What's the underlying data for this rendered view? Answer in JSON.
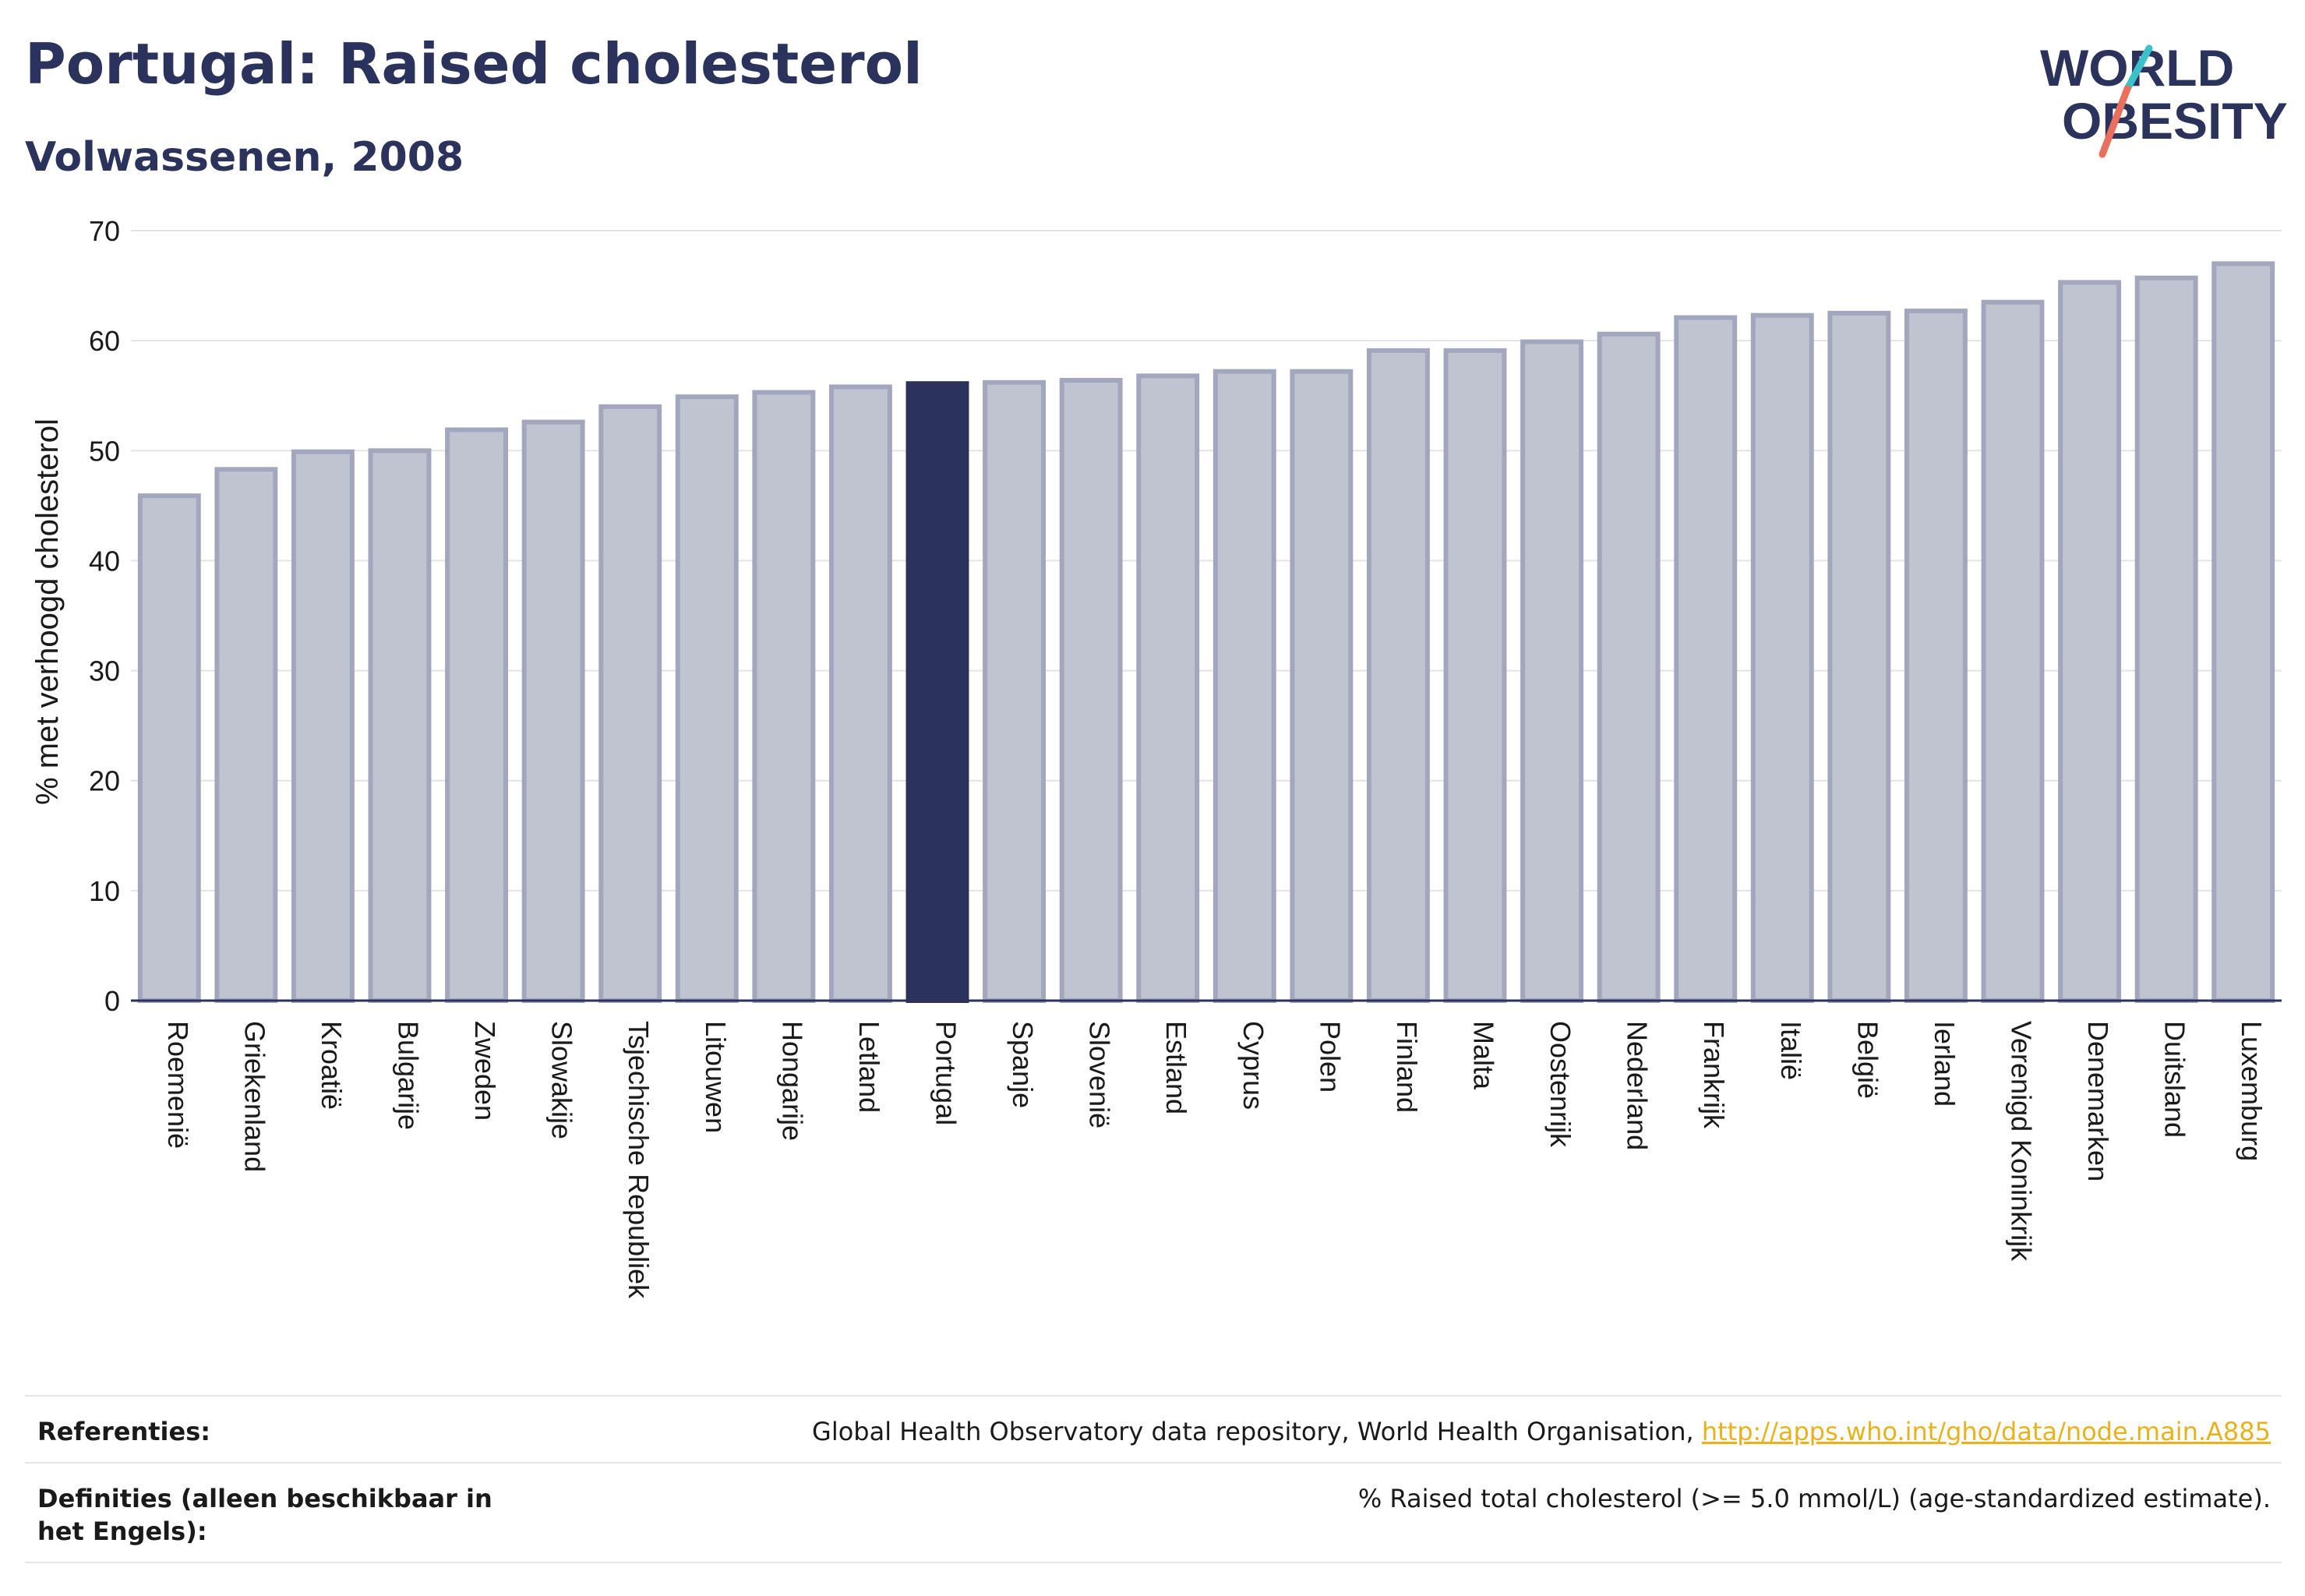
{
  "header": {
    "title": "Portugal: Raised cholesterol",
    "subtitle": "Volwassenen, 2008"
  },
  "logo": {
    "line1": "WORLD",
    "line2": "OBESITY"
  },
  "colors": {
    "highlight": "#2b335c",
    "bar_fill": "#c0c3d0",
    "bar_stroke": "#a3a7bd",
    "grid": "#e3e3e8",
    "logo_teal": "#3cc1c8",
    "logo_coral": "#e8705c",
    "link": "#e8b21e"
  },
  "chart_data": {
    "type": "bar",
    "title": "Portugal: Raised cholesterol",
    "subtitle": "Volwassenen, 2008",
    "ylabel": "% met verhoogd cholesterol",
    "xlabel": "",
    "ylim": [
      0,
      70
    ],
    "yticks": [
      0,
      10,
      20,
      30,
      40,
      50,
      60,
      70
    ],
    "grid": true,
    "highlight": "Portugal",
    "categories": [
      "Roemenië",
      "Griekenland",
      "Kroatië",
      "Bulgarije",
      "Zweden",
      "Slowakije",
      "Tsjechische Republiek",
      "Litouwen",
      "Hongarije",
      "Letland",
      "Portugal",
      "Spanje",
      "Slovenië",
      "Estland",
      "Cyprus",
      "Polen",
      "Finland",
      "Malta",
      "Oostenrijk",
      "Nederland",
      "Frankrijk",
      "Italië",
      "België",
      "Ierland",
      "Verenigd Koninkrijk",
      "Denemarken",
      "Duitsland",
      "Luxemburg"
    ],
    "values": [
      45.9,
      48.3,
      49.9,
      50.0,
      51.9,
      52.6,
      54.0,
      54.9,
      55.3,
      55.8,
      56.1,
      56.2,
      56.4,
      56.8,
      57.2,
      57.2,
      59.1,
      59.1,
      59.9,
      60.6,
      62.1,
      62.3,
      62.5,
      62.7,
      63.5,
      65.3,
      65.7,
      67.0
    ]
  },
  "references": {
    "label": "Referenties:",
    "text": "Global Health Observatory data repository, World Health Organisation, ",
    "link": "http://apps.who.int/gho/data/node.main.A885"
  },
  "definitions": {
    "label": "Definities (alleen beschikbaar in het Engels):",
    "text": "% Raised total cholesterol (>= 5.0 mmol/L) (age-standardized estimate)."
  }
}
